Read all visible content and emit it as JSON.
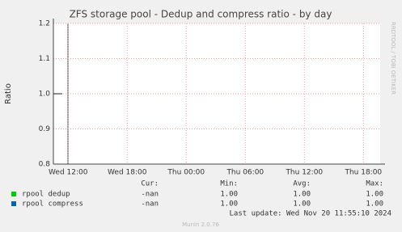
{
  "chart_data": {
    "type": "line",
    "title": "ZFS storage pool - Dedup and compress ratio - by day",
    "ylabel": "Ratio",
    "watermark": "RRDTOOL / TOBI OETIKER",
    "xlim": [
      10.5,
      43.7
    ],
    "xticks": [
      {
        "value": 12,
        "label": "Wed 12:00"
      },
      {
        "value": 18,
        "label": "Wed 18:00"
      },
      {
        "value": 24,
        "label": "Thu 00:00"
      },
      {
        "value": 30,
        "label": "Thu 06:00"
      },
      {
        "value": 36,
        "label": "Thu 12:00"
      },
      {
        "value": 42,
        "label": "Thu 18:00"
      }
    ],
    "ylim": [
      0.8,
      1.2
    ],
    "yticks": [
      0.8,
      0.9,
      {
        "value": 1,
        "label": "1.0"
      },
      1.1,
      1.2
    ],
    "grid": true,
    "x": [
      10.5,
      11.4
    ],
    "stat_headers": [
      "Cur:",
      "Min:",
      "Avg:",
      "Max:"
    ],
    "series": [
      {
        "name": "rpool dedup",
        "color": "#00cc00",
        "values": [
          1,
          1
        ],
        "stats": [
          "-nan",
          "1.00",
          "1.00",
          "1.00"
        ]
      },
      {
        "name": "rpool compress",
        "color": "#0066b3",
        "values": [
          1,
          1
        ],
        "stats": [
          "-nan",
          "1.00",
          "1.00",
          "1.00"
        ]
      }
    ],
    "last_update": "Last update: Wed Nov 20 11:55:10 2024",
    "footer": "Munin 2.0.76"
  }
}
